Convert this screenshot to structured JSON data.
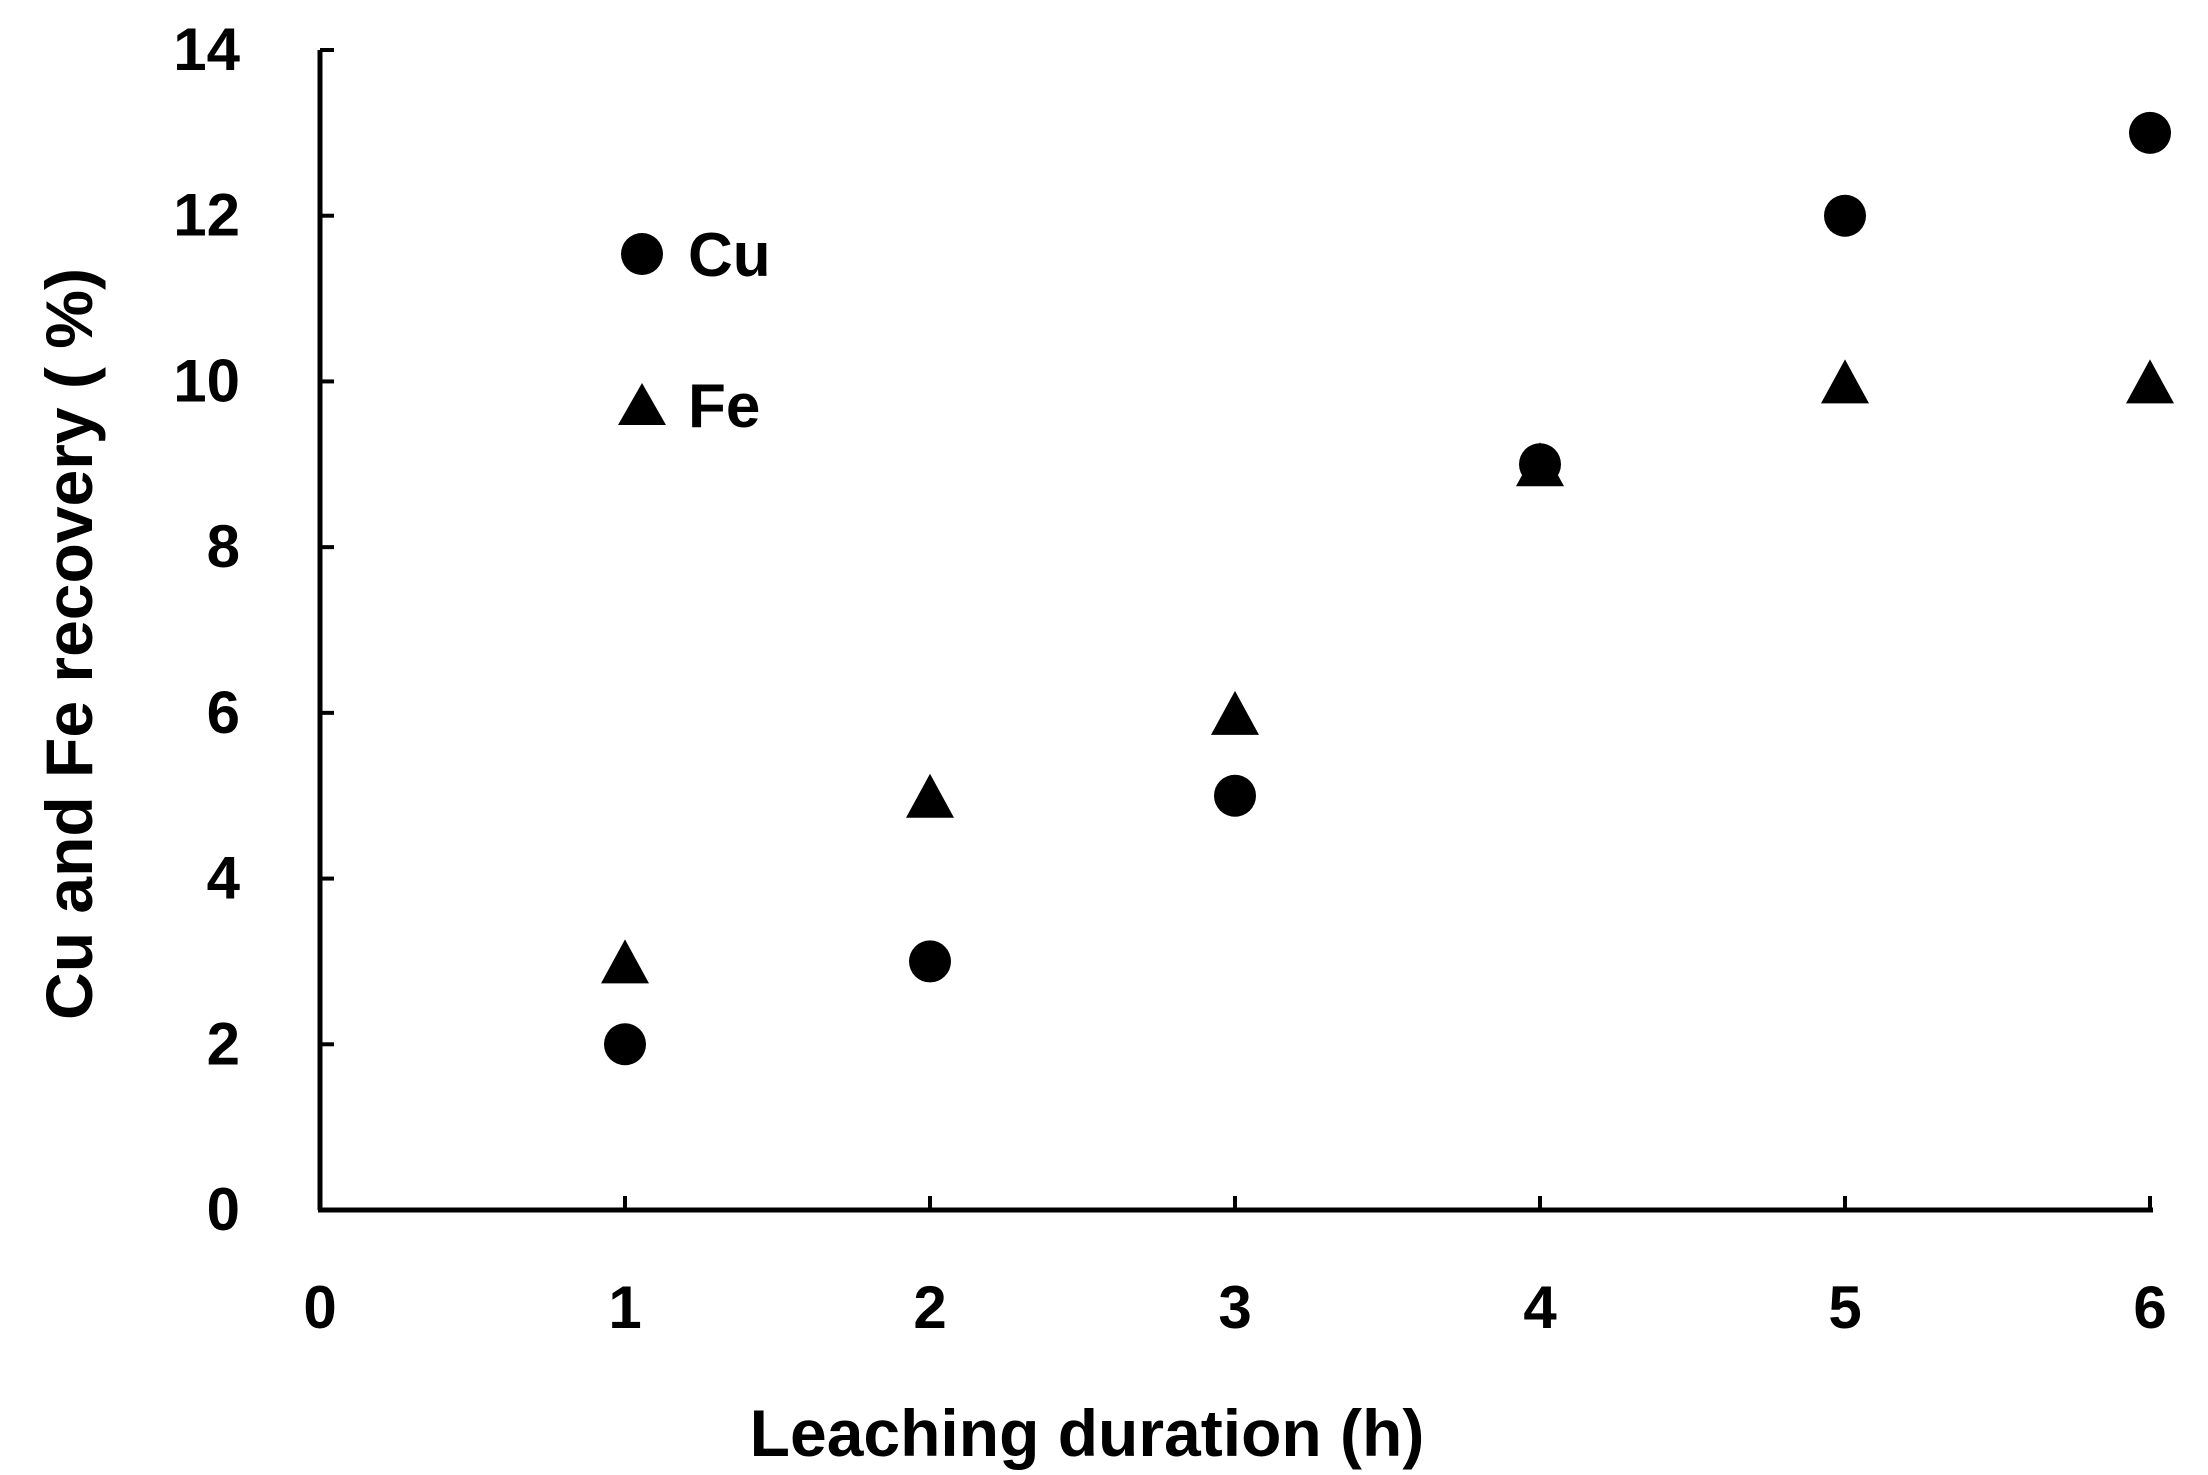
{
  "chart_data": {
    "type": "scatter",
    "title": "",
    "xlabel": "Leaching duration (h)",
    "ylabel": "Cu and Fe recovery ( %)",
    "xlim": [
      0,
      6
    ],
    "ylim": [
      0,
      14
    ],
    "xticks": [
      "0",
      "1",
      "2",
      "3",
      "4",
      "5",
      "6"
    ],
    "yticks": [
      "0",
      "2",
      "4",
      "6",
      "8",
      "10",
      "12",
      "14"
    ],
    "grid": false,
    "legend_position": "upper-left",
    "x": [
      1,
      2,
      3,
      4,
      5,
      6
    ],
    "series": [
      {
        "name": "Cu",
        "marker": "circle",
        "color": "#000000",
        "values": [
          2,
          3,
          5,
          9,
          12,
          13
        ]
      },
      {
        "name": "Fe",
        "marker": "triangle",
        "color": "#000000",
        "values": [
          3,
          5,
          6,
          9,
          10,
          10
        ]
      }
    ]
  }
}
